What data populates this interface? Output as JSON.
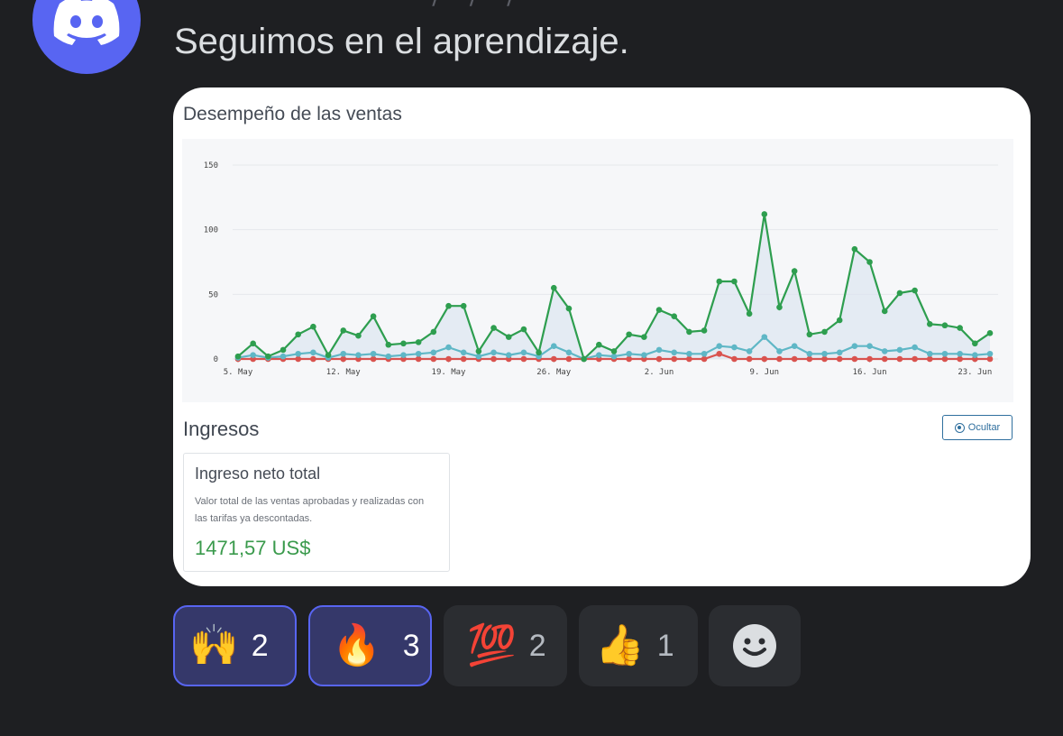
{
  "message": {
    "header_partial": "— · —— · ——  ——/—/—/",
    "text": "Seguimos en el aprendizaje."
  },
  "embed": {
    "chart_title": "Desempeño de las ventas",
    "section_title": "Ingresos",
    "hide_button": "Ocultar",
    "card": {
      "title": "Ingreso neto total",
      "description": "Valor total de las ventas aprobadas y realizadas con las tarifas ya descontadas.",
      "value": "1471,57 US$"
    }
  },
  "chart_data": {
    "type": "line",
    "title": "Desempeño de las ventas",
    "ylim": [
      0,
      150
    ],
    "yticks": [
      0,
      50,
      100,
      150
    ],
    "xtick_labels": [
      "5. May",
      "12. May",
      "19. May",
      "26. May",
      "2. Jun",
      "9. Jun",
      "16. Jun",
      "23. Jun"
    ],
    "xtick_positions": [
      0,
      7,
      14,
      21,
      28,
      35,
      42,
      49
    ],
    "x_days": 50,
    "series": [
      {
        "name": "",
        "color": "#2e9e4f",
        "values": [
          2,
          12,
          2,
          7,
          19,
          25,
          3,
          22,
          18,
          33,
          11,
          12,
          13,
          21,
          41,
          41,
          6,
          24,
          17,
          23,
          5,
          55,
          39,
          0,
          11,
          6,
          19,
          17,
          38,
          33,
          21,
          22,
          60,
          60,
          35,
          112,
          40,
          68,
          19,
          21,
          30,
          85,
          75,
          37,
          51,
          53,
          27,
          26,
          24,
          12,
          20
        ]
      },
      {
        "name": "",
        "color": "#5fb7c6",
        "values": [
          1,
          3,
          1,
          2,
          4,
          5,
          1,
          4,
          3,
          4,
          2,
          3,
          4,
          5,
          9,
          5,
          2,
          5,
          3,
          5,
          2,
          10,
          5,
          0,
          3,
          2,
          4,
          3,
          7,
          5,
          4,
          4,
          10,
          9,
          6,
          17,
          6,
          10,
          4,
          4,
          5,
          10,
          10,
          6,
          7,
          9,
          4,
          4,
          4,
          3,
          4
        ]
      },
      {
        "name": "",
        "color": "#d9534f",
        "values": [
          0,
          0,
          0,
          0,
          0,
          0,
          0,
          0,
          0,
          0,
          0,
          0,
          0,
          0,
          0,
          0,
          0,
          0,
          0,
          0,
          0,
          0,
          0,
          0,
          0,
          0,
          0,
          0,
          0,
          0,
          0,
          0,
          4,
          0,
          0,
          0,
          0,
          0,
          0,
          0,
          0,
          0,
          0,
          0,
          0,
          0,
          0,
          0,
          0,
          0,
          0
        ]
      }
    ]
  },
  "reactions": [
    {
      "emoji": "🙌",
      "emoji_name": "raised-hands",
      "count": "2",
      "active": true
    },
    {
      "emoji": "🔥",
      "emoji_name": "fire",
      "count": "3",
      "active": true
    },
    {
      "emoji": "💯",
      "emoji_name": "hundred-points",
      "count": "2",
      "active": false
    },
    {
      "emoji": "👍",
      "emoji_name": "thumbs-up",
      "count": "1",
      "active": false
    }
  ],
  "colors": {
    "background": "#1e1f22",
    "avatar": "#5865f2",
    "reaction_active": "#35386a",
    "reaction_active_border": "#5865f2",
    "reaction_idle": "#2b2d31",
    "income_value": "#3a9a4c"
  }
}
